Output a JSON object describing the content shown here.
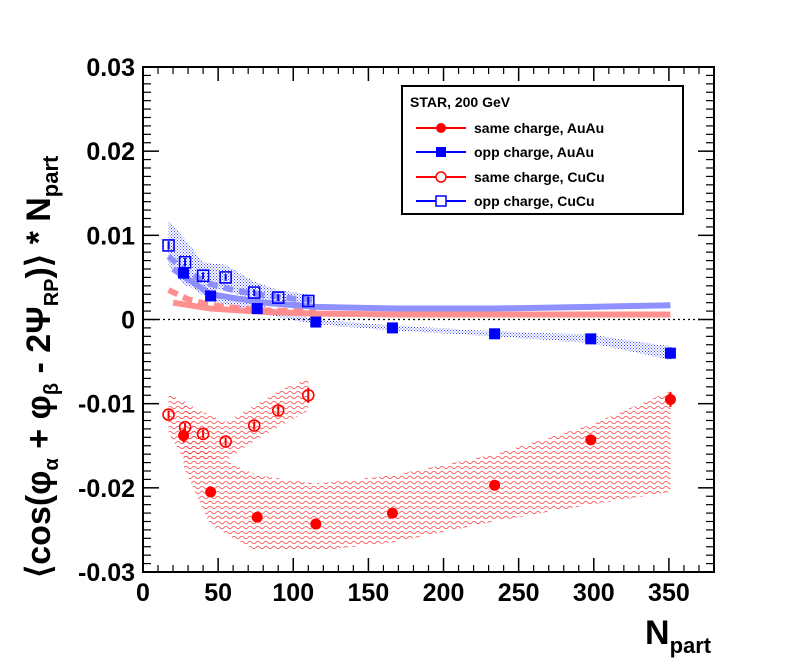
{
  "chart_data": {
    "type": "scatter",
    "x_axis": {
      "label_main": "N",
      "label_sub": "part",
      "range": [
        0,
        380
      ],
      "ticks": [
        0,
        50,
        100,
        150,
        200,
        250,
        300,
        350
      ],
      "tick_labels": [
        "0",
        "50",
        "100",
        "150",
        "200",
        "250",
        "300",
        "350"
      ]
    },
    "y_axis": {
      "label_parts": {
        "open": "⟨cos(φ",
        "sub_alpha": "α",
        "plus": " + φ",
        "sub_beta": "β",
        "minus": " - 2Ψ",
        "sub_rp": "RP",
        "close": ")⟩ * N",
        "sub_part": "part"
      },
      "range": [
        -0.03,
        0.03
      ],
      "ticks": [
        -0.03,
        -0.02,
        -0.01,
        0,
        0.01,
        0.02,
        0.03
      ],
      "tick_labels": [
        "-0.03",
        "-0.02",
        "-0.01",
        "0",
        "0.01",
        "0.02",
        "0.03"
      ]
    },
    "zero_line": true,
    "legend": {
      "title": "STAR, 200 GeV",
      "placement": "top-right",
      "entries": [
        "same charge, AuAu",
        "opp charge, AuAu",
        "same charge, CuCu",
        "opp charge, CuCu"
      ]
    },
    "series": [
      {
        "name": "same charge, AuAu",
        "color": "#ff0000",
        "marker": "filled-circle",
        "x": [
          27,
          45,
          76,
          115,
          166,
          234,
          298,
          351
        ],
        "y": [
          -0.0138,
          -0.0205,
          -0.0235,
          -0.0243,
          -0.023,
          -0.0197,
          -0.0143,
          -0.0095
        ],
        "yerr": [
          0.0008,
          0.0006,
          0.0004,
          0.0004,
          0.0004,
          0.0004,
          0.0005,
          0.0009
        ],
        "band_low": [
          -0.0175,
          -0.0245,
          -0.0275,
          -0.0275,
          -0.0265,
          -0.024,
          -0.022,
          -0.0205
        ],
        "band_high": [
          -0.0095,
          -0.016,
          -0.0185,
          -0.0195,
          -0.0185,
          -0.016,
          -0.0125,
          -0.0085
        ]
      },
      {
        "name": "opp charge, AuAu",
        "color": "#0000ff",
        "marker": "filled-square",
        "x": [
          27,
          45,
          76,
          115,
          166,
          234,
          298,
          351
        ],
        "y": [
          0.0055,
          0.0028,
          0.0013,
          -0.0003,
          -0.001,
          -0.0017,
          -0.0023,
          -0.004
        ],
        "yerr": [
          0.0006,
          0.0004,
          0.0003,
          0.0003,
          0.0003,
          0.0003,
          0.0005,
          0.0007
        ],
        "band_low": [
          0.0045,
          0.0022,
          0.0008,
          -0.0006,
          -0.0013,
          -0.002,
          -0.0028,
          -0.0048
        ],
        "band_high": [
          0.0065,
          0.0034,
          0.0018,
          0.0,
          -0.0007,
          -0.0014,
          -0.0018,
          -0.0032
        ]
      },
      {
        "name": "same charge, CuCu",
        "color": "#ff0000",
        "marker": "open-circle",
        "x": [
          17,
          28,
          40,
          55,
          74,
          90,
          110
        ],
        "y": [
          -0.0113,
          -0.0128,
          -0.0136,
          -0.0145,
          -0.0126,
          -0.0108,
          -0.009
        ],
        "yerr": [
          0.0005,
          0.0005,
          0.0005,
          0.0005,
          0.0005,
          0.0006,
          0.0009
        ],
        "band_low": [
          -0.0135,
          -0.0168,
          -0.0168,
          -0.0168,
          -0.0145,
          -0.0128,
          -0.0108
        ],
        "band_high": [
          -0.0088,
          -0.0098,
          -0.011,
          -0.0122,
          -0.0102,
          -0.0085,
          -0.007
        ]
      },
      {
        "name": "opp charge, CuCu",
        "color": "#0000ff",
        "marker": "open-square",
        "x": [
          17,
          28,
          40,
          55,
          74,
          90,
          110
        ],
        "y": [
          0.0088,
          0.0068,
          0.0052,
          0.005,
          0.0032,
          0.0026,
          0.0022
        ],
        "yerr": [
          0.0005,
          0.0005,
          0.0004,
          0.0004,
          0.0004,
          0.0004,
          0.0005
        ],
        "band_low": [
          0.0065,
          0.004,
          0.0035,
          0.0035,
          0.0022,
          0.0016,
          0.0015
        ],
        "band_high": [
          0.0118,
          0.0095,
          0.0068,
          0.0065,
          0.0045,
          0.0035,
          0.003
        ]
      }
    ],
    "curves": [
      {
        "color": "#ff8a8a",
        "style": "dashed",
        "x": [
          17,
          30,
          45,
          60,
          80,
          100,
          115
        ],
        "y": [
          0.0035,
          0.0024,
          0.0017,
          0.0014,
          0.0011,
          0.001,
          0.0009
        ]
      },
      {
        "color": "#ff8a8a",
        "style": "solid",
        "x": [
          20,
          45,
          80,
          115,
          170,
          234,
          298,
          351
        ],
        "y": [
          0.002,
          0.0013,
          0.0009,
          0.0007,
          0.0006,
          0.0006,
          0.0006,
          0.0006
        ]
      },
      {
        "color": "#8a8aff",
        "style": "dashed",
        "x": [
          17,
          30,
          45,
          60,
          80,
          100,
          115
        ],
        "y": [
          0.0075,
          0.0055,
          0.0042,
          0.0035,
          0.0029,
          0.0025,
          0.0023
        ]
      },
      {
        "color": "#8a8aff",
        "style": "solid",
        "x": [
          20,
          45,
          80,
          115,
          170,
          234,
          298,
          351
        ],
        "y": [
          0.006,
          0.003,
          0.002,
          0.0015,
          0.0013,
          0.0013,
          0.0015,
          0.0017
        ]
      }
    ]
  }
}
